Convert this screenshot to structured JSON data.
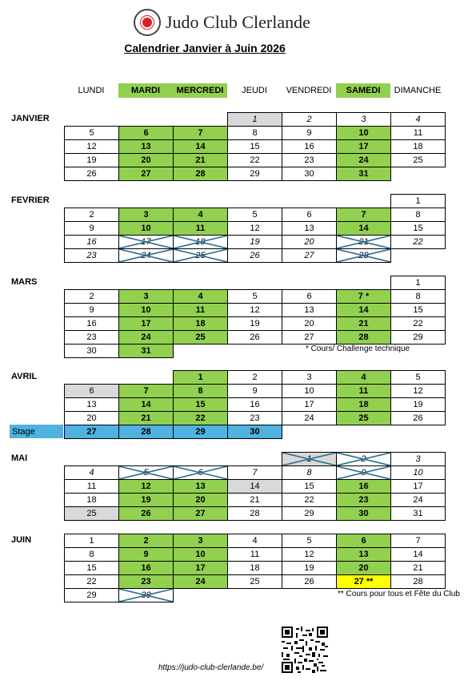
{
  "header": {
    "club_name": "Judo Club Clerlande"
  },
  "calendar_title": "Calendrier Janvier à Juin 2026",
  "days": [
    {
      "label": "LUNDI",
      "highlight": false
    },
    {
      "label": "MARDI",
      "highlight": true
    },
    {
      "label": "MERCREDI",
      "highlight": true
    },
    {
      "label": "JEUDI",
      "highlight": false
    },
    {
      "label": "VENDREDI",
      "highlight": false
    },
    {
      "label": "SAMEDI",
      "highlight": true
    },
    {
      "label": "DIMANCHE",
      "highlight": false
    }
  ],
  "months": [
    {
      "name": "JANVIER",
      "rows": [
        [
          null,
          null,
          null,
          {
            "t": "1",
            "s": "gy i"
          },
          {
            "t": "2",
            "s": "i"
          },
          {
            "t": "3",
            "s": "i"
          },
          {
            "t": "4",
            "s": "i"
          }
        ],
        [
          {
            "t": "5"
          },
          {
            "t": "6",
            "s": "g"
          },
          {
            "t": "7",
            "s": "g"
          },
          {
            "t": "8"
          },
          {
            "t": "9"
          },
          {
            "t": "10",
            "s": "g"
          },
          {
            "t": "11"
          }
        ],
        [
          {
            "t": "12"
          },
          {
            "t": "13",
            "s": "g"
          },
          {
            "t": "14",
            "s": "g"
          },
          {
            "t": "15"
          },
          {
            "t": "16"
          },
          {
            "t": "17",
            "s": "g"
          },
          {
            "t": "18"
          }
        ],
        [
          {
            "t": "19"
          },
          {
            "t": "20",
            "s": "g"
          },
          {
            "t": "21",
            "s": "g"
          },
          {
            "t": "22"
          },
          {
            "t": "23"
          },
          {
            "t": "24",
            "s": "g"
          },
          {
            "t": "25"
          }
        ],
        [
          {
            "t": "26"
          },
          {
            "t": "27",
            "s": "g"
          },
          {
            "t": "28",
            "s": "g"
          },
          {
            "t": "29"
          },
          {
            "t": "30"
          },
          {
            "t": "31",
            "s": "g"
          },
          null
        ]
      ]
    },
    {
      "name": "FEVRIER",
      "rows": [
        [
          null,
          null,
          null,
          null,
          null,
          null,
          {
            "t": "1"
          }
        ],
        [
          {
            "t": "2"
          },
          {
            "t": "3",
            "s": "g"
          },
          {
            "t": "4",
            "s": "g"
          },
          {
            "t": "5"
          },
          {
            "t": "6"
          },
          {
            "t": "7",
            "s": "g"
          },
          {
            "t": "8"
          }
        ],
        [
          {
            "t": "9"
          },
          {
            "t": "10",
            "s": "g"
          },
          {
            "t": "11",
            "s": "g"
          },
          {
            "t": "12"
          },
          {
            "t": "13"
          },
          {
            "t": "14",
            "s": "g"
          },
          {
            "t": "15"
          }
        ],
        [
          {
            "t": "16",
            "s": "i"
          },
          {
            "t": "17",
            "s": "i",
            "x": true
          },
          {
            "t": "18",
            "s": "i",
            "x": true
          },
          {
            "t": "19",
            "s": "i"
          },
          {
            "t": "20",
            "s": "i"
          },
          {
            "t": "21",
            "s": "i",
            "x": true
          },
          {
            "t": "22",
            "s": "i"
          }
        ],
        [
          {
            "t": "23",
            "s": "i"
          },
          {
            "t": "24",
            "s": "i",
            "x": true
          },
          {
            "t": "25",
            "s": "i",
            "x": true
          },
          {
            "t": "26",
            "s": "i"
          },
          {
            "t": "27",
            "s": "i"
          },
          {
            "t": "28",
            "s": "i",
            "x": true
          },
          null
        ]
      ]
    },
    {
      "name": "MARS",
      "rows": [
        [
          null,
          null,
          null,
          null,
          null,
          null,
          {
            "t": "1"
          }
        ],
        [
          {
            "t": "2"
          },
          {
            "t": "3",
            "s": "g"
          },
          {
            "t": "4",
            "s": "g"
          },
          {
            "t": "5"
          },
          {
            "t": "6"
          },
          {
            "t": "7 *",
            "s": "g"
          },
          {
            "t": "8"
          }
        ],
        [
          {
            "t": "9"
          },
          {
            "t": "10",
            "s": "g"
          },
          {
            "t": "11",
            "s": "g"
          },
          {
            "t": "12"
          },
          {
            "t": "13"
          },
          {
            "t": "14",
            "s": "g"
          },
          {
            "t": "15"
          }
        ],
        [
          {
            "t": "16"
          },
          {
            "t": "17",
            "s": "g"
          },
          {
            "t": "18",
            "s": "g"
          },
          {
            "t": "19"
          },
          {
            "t": "20"
          },
          {
            "t": "21",
            "s": "g"
          },
          {
            "t": "22"
          }
        ],
        [
          {
            "t": "23"
          },
          {
            "t": "24",
            "s": "g"
          },
          {
            "t": "25",
            "s": "g"
          },
          {
            "t": "26"
          },
          {
            "t": "27"
          },
          {
            "t": "28",
            "s": "g"
          },
          {
            "t": "29"
          }
        ],
        [
          {
            "t": "30"
          },
          {
            "t": "31",
            "s": "g"
          },
          null,
          null,
          null,
          null,
          null
        ]
      ],
      "note": "* Cours/  Challenge technique"
    },
    {
      "name": "AVRIL",
      "rows": [
        [
          null,
          null,
          {
            "t": "1",
            "s": "g"
          },
          {
            "t": "2"
          },
          {
            "t": "3"
          },
          {
            "t": "4",
            "s": "g"
          },
          {
            "t": "5"
          }
        ],
        [
          {
            "t": "6",
            "s": "gy"
          },
          {
            "t": "7",
            "s": "g"
          },
          {
            "t": "8",
            "s": "g"
          },
          {
            "t": "9"
          },
          {
            "t": "10"
          },
          {
            "t": "11",
            "s": "g"
          },
          {
            "t": "12"
          }
        ],
        [
          {
            "t": "13"
          },
          {
            "t": "14",
            "s": "g"
          },
          {
            "t": "15",
            "s": "g"
          },
          {
            "t": "16"
          },
          {
            "t": "17"
          },
          {
            "t": "18",
            "s": "g"
          },
          {
            "t": "19"
          }
        ],
        [
          {
            "t": "20"
          },
          {
            "t": "21",
            "s": "g"
          },
          {
            "t": "22",
            "s": "g"
          },
          {
            "t": "23"
          },
          {
            "t": "24"
          },
          {
            "t": "25",
            "s": "g"
          },
          {
            "t": "26"
          }
        ],
        [
          {
            "t": "27",
            "s": "b"
          },
          {
            "t": "28",
            "s": "b"
          },
          {
            "t": "29",
            "s": "b"
          },
          {
            "t": "30",
            "s": "b"
          },
          null,
          null,
          null
        ]
      ],
      "stage_label": "Stage"
    },
    {
      "name": "MAI",
      "rows": [
        [
          null,
          null,
          null,
          null,
          {
            "t": "1",
            "s": "gy i",
            "x": true
          },
          {
            "t": "2",
            "s": "i",
            "x": true
          },
          {
            "t": "3",
            "s": "i"
          }
        ],
        [
          {
            "t": "4",
            "s": "i"
          },
          {
            "t": "5",
            "s": "i",
            "x": true
          },
          {
            "t": "6",
            "s": "i",
            "x": true
          },
          {
            "t": "7",
            "s": "i"
          },
          {
            "t": "8",
            "s": "i"
          },
          {
            "t": "9",
            "s": "i",
            "x": true
          },
          {
            "t": "10",
            "s": "i"
          }
        ],
        [
          {
            "t": "11"
          },
          {
            "t": "12",
            "s": "g"
          },
          {
            "t": "13",
            "s": "g"
          },
          {
            "t": "14",
            "s": "gy"
          },
          {
            "t": "15"
          },
          {
            "t": "16",
            "s": "g"
          },
          {
            "t": "17"
          }
        ],
        [
          {
            "t": "18"
          },
          {
            "t": "19",
            "s": "g"
          },
          {
            "t": "20",
            "s": "g"
          },
          {
            "t": "21"
          },
          {
            "t": "22"
          },
          {
            "t": "23",
            "s": "g"
          },
          {
            "t": "24"
          }
        ],
        [
          {
            "t": "25",
            "s": "gy"
          },
          {
            "t": "26",
            "s": "g"
          },
          {
            "t": "27",
            "s": "g"
          },
          {
            "t": "28"
          },
          {
            "t": "29"
          },
          {
            "t": "30",
            "s": "g"
          },
          {
            "t": "31"
          }
        ]
      ]
    },
    {
      "name": "JUIN",
      "rows": [
        [
          {
            "t": "1"
          },
          {
            "t": "2",
            "s": "g"
          },
          {
            "t": "3",
            "s": "g"
          },
          {
            "t": "4"
          },
          {
            "t": "5"
          },
          {
            "t": "6",
            "s": "g"
          },
          {
            "t": "7"
          }
        ],
        [
          {
            "t": "8"
          },
          {
            "t": "9",
            "s": "g"
          },
          {
            "t": "10",
            "s": "g"
          },
          {
            "t": "11"
          },
          {
            "t": "12"
          },
          {
            "t": "13",
            "s": "g"
          },
          {
            "t": "14"
          }
        ],
        [
          {
            "t": "15"
          },
          {
            "t": "16",
            "s": "g"
          },
          {
            "t": "17",
            "s": "g"
          },
          {
            "t": "18"
          },
          {
            "t": "19"
          },
          {
            "t": "20",
            "s": "g"
          },
          {
            "t": "21"
          }
        ],
        [
          {
            "t": "22"
          },
          {
            "t": "23",
            "s": "g"
          },
          {
            "t": "24",
            "s": "g"
          },
          {
            "t": "25"
          },
          {
            "t": "26"
          },
          {
            "t": "27 **",
            "s": "y"
          },
          {
            "t": "28"
          }
        ],
        [
          {
            "t": "29"
          },
          {
            "t": "30",
            "s": "i",
            "x": true
          },
          null,
          null,
          null,
          null,
          null
        ]
      ],
      "note": "** Cours pour tous et Fête du Club"
    }
  ],
  "footer_url": "https://judo-club-clerlande.be/",
  "colors": {
    "green": "#92d050",
    "gray": "#d9d9d9",
    "blue": "#4fb2e0",
    "yellow": "#ffff00",
    "cross": "#2e6f8e"
  },
  "icons": [
    "judo-club-logo-icon",
    "qr-code-icon"
  ]
}
